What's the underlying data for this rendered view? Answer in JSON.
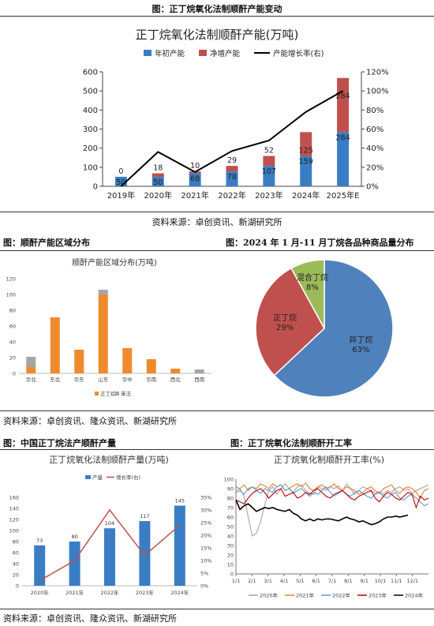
{
  "figure1": {
    "caption": "图：正丁烷氧化法制顺酐产能变动",
    "source": "资料来源：卓创资讯、新湖研究所"
  },
  "figure2": {
    "caption": "图：顺酐产能区域分布",
    "source": "资料来源：卓创资讯、隆众资讯、新湖研究所"
  },
  "figure3": {
    "caption": "图：2024 年 1 月-11 月丁烷各品种商品量分布"
  },
  "figure4": {
    "caption": "图：中国正丁烷法产顺酐产量",
    "source": "资料来源：卓创资讯、隆众资讯、新湖研究所"
  },
  "figure5": {
    "caption": "图：正丁烷氧化法制顺酐开工率"
  },
  "chart_data": [
    {
      "id": "capacity",
      "type": "bar",
      "title": "正丁烷氧化法制顺酐产能(万吨)",
      "categories": [
        "2019年",
        "2020年",
        "2021年",
        "2022年",
        "2023年",
        "2024年",
        "2025年E"
      ],
      "series": [
        {
          "name": "年初产能",
          "values": [
            50,
            50,
            68,
            78,
            107,
            159,
            284
          ],
          "color": "#3a7dc4"
        },
        {
          "name": "净增产能",
          "values": [
            0,
            18,
            10,
            29,
            52,
            125,
            284
          ],
          "color": "#c0504d"
        },
        {
          "name": "产能增长率(右)",
          "values": [
            0,
            36,
            15,
            37,
            48,
            78,
            100
          ],
          "color": "#000000",
          "axis": "right"
        }
      ],
      "ylim": [
        0,
        600
      ],
      "y_ticks": [
        "0",
        "100",
        "200",
        "300",
        "400",
        "500",
        "600"
      ],
      "y2lim": [
        0,
        120
      ],
      "y2_ticks": [
        "0%",
        "20%",
        "40%",
        "60%",
        "80%",
        "100%",
        "120%"
      ],
      "legend": "top"
    },
    {
      "id": "region",
      "type": "bar",
      "title": "顺酐产能区域分布(万吨)",
      "categories": [
        "华北",
        "东北",
        "华东",
        "山东",
        "华中",
        "华南",
        "西北",
        "西南"
      ],
      "series": [
        {
          "name": "正丁烷",
          "values": [
            8,
            71,
            30,
            100,
            32,
            18,
            6,
            0
          ],
          "color": "#f08a2e"
        },
        {
          "name": "苯法",
          "values": [
            13,
            0,
            0,
            6,
            0,
            0,
            0,
            5
          ],
          "color": "#a6a6a6"
        }
      ],
      "ylim": [
        0,
        120
      ],
      "y_ticks": [
        "0",
        "20",
        "40",
        "60",
        "80",
        "100",
        "120"
      ],
      "legend": "bottom"
    },
    {
      "id": "butane",
      "type": "pie",
      "labels": [
        "异丁烷",
        "正丁烷",
        "混合丁烷"
      ],
      "values": [
        63,
        29,
        8
      ],
      "display": [
        "63%",
        "29%",
        "8%"
      ],
      "colors": [
        "#4f81bd",
        "#c0504d",
        "#9bbb59"
      ]
    },
    {
      "id": "output",
      "type": "bar",
      "title": "正丁烷氧化法制顺酐产量(万吨)",
      "categories": [
        "2020年",
        "2021年",
        "2022年",
        "2023年",
        "2024年"
      ],
      "series": [
        {
          "name": "产量",
          "values": [
            73,
            80,
            104,
            117,
            145
          ],
          "color": "#3a7dc4"
        },
        {
          "name": "增长率(右)",
          "values": [
            2,
            10,
            30,
            12,
            24
          ],
          "color": "#c0504d",
          "axis": "right"
        }
      ],
      "ylim": [
        0,
        160
      ],
      "y_ticks": [
        "0",
        "20",
        "40",
        "60",
        "80",
        "100",
        "120",
        "140",
        "160"
      ],
      "y2lim": [
        0,
        35
      ],
      "y2_ticks": [
        "0%",
        "5%",
        "10%",
        "15%",
        "20%",
        "25%",
        "30%",
        "35%"
      ],
      "legend": "top"
    },
    {
      "id": "operating",
      "type": "line",
      "title": "正丁烷氧化制顺酐开工率(%)",
      "x_ticks": [
        "1/1",
        "2/1",
        "3/1",
        "4/1",
        "5/1",
        "6/1",
        "7/1",
        "8/1",
        "9/1",
        "10/1",
        "11/1",
        "12/1"
      ],
      "ylim": [
        0,
        100
      ],
      "y_ticks": [
        "0",
        "10",
        "20",
        "30",
        "40",
        "50",
        "60",
        "70",
        "80",
        "90",
        "100"
      ],
      "series": [
        {
          "name": "2020年",
          "color": "#a6a6a6",
          "values": [
            88,
            90,
            82,
            60,
            40,
            43,
            55,
            72,
            88,
            92,
            84,
            90,
            95,
            90,
            86,
            92,
            94,
            88,
            85,
            84,
            92,
            90,
            88,
            92,
            90,
            93,
            88,
            95,
            90,
            84,
            88,
            92,
            90,
            88,
            85,
            87,
            84,
            88,
            86,
            90,
            92,
            88,
            90,
            85,
            88,
            90,
            92,
            94
          ]
        },
        {
          "name": "2021年",
          "color": "#ed7d31",
          "values": [
            92,
            90,
            94,
            88,
            92,
            90,
            95,
            93,
            90,
            95,
            92,
            94,
            88,
            90,
            93,
            95,
            92,
            96,
            90,
            88,
            92,
            94,
            90,
            92,
            95,
            90,
            88,
            92,
            90,
            88,
            84,
            86,
            90,
            92,
            88,
            85,
            90,
            92,
            94,
            88,
            85,
            90,
            92,
            90,
            86,
            80,
            88,
            90
          ]
        },
        {
          "name": "2022年",
          "color": "#5b9bd5",
          "values": [
            86,
            88,
            84,
            90,
            92,
            88,
            85,
            90,
            88,
            86,
            92,
            94,
            88,
            90,
            85,
            88,
            90,
            86,
            82,
            86,
            84,
            88,
            92,
            86,
            82,
            85,
            88,
            84,
            82,
            86,
            88,
            85,
            82,
            80,
            84,
            86,
            82,
            80,
            84,
            86,
            80,
            78,
            82,
            84,
            80,
            76,
            72,
            74
          ]
        },
        {
          "name": "2023年",
          "color": "#c00000",
          "values": [
            78,
            76,
            74,
            80,
            85,
            88,
            90,
            86,
            80,
            84,
            88,
            90,
            82,
            84,
            86,
            80,
            82,
            86,
            84,
            88,
            90,
            86,
            82,
            80,
            84,
            86,
            88,
            84,
            80,
            78,
            82,
            84,
            86,
            88,
            80,
            76,
            82,
            86,
            84,
            80,
            78,
            82,
            86,
            84,
            70,
            82,
            78,
            80
          ]
        },
        {
          "name": "2024年",
          "color": "#000000",
          "values": [
            78,
            68,
            72,
            74,
            70,
            66,
            68,
            70,
            69,
            70,
            68,
            67,
            66,
            68,
            64,
            62,
            58,
            56,
            58,
            56,
            58,
            57,
            58,
            58,
            57,
            56,
            58,
            60,
            58,
            57,
            55,
            56,
            54,
            52,
            53,
            55,
            58,
            60,
            60,
            61,
            60,
            61,
            62
          ]
        }
      ],
      "legend": "bottom"
    }
  ]
}
